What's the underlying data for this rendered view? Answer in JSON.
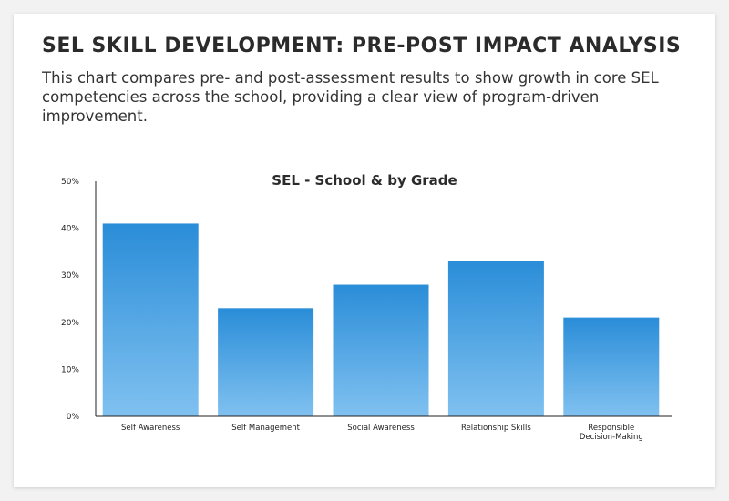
{
  "header": {
    "title": "SEL SKILL DEVELOPMENT: PRE-POST IMPACT ANALYSIS",
    "description": "This chart compares pre- and post-assessment results to show growth in core SEL competencies across the school, providing a clear view of program-driven improvement."
  },
  "chart_data": {
    "type": "bar",
    "title": "SEL - School & by Grade",
    "categories": [
      "Self Awareness",
      "Self Management",
      "Social Awareness",
      "Relationship Skills",
      "Responsible Decision-Making"
    ],
    "category_lines": [
      [
        "Self Awareness"
      ],
      [
        "Self Management"
      ],
      [
        "Social Awareness"
      ],
      [
        "Relationship Skills"
      ],
      [
        "Responsible",
        "Decision-Making"
      ]
    ],
    "values": [
      41,
      23,
      28,
      33,
      21
    ],
    "ylim": [
      0,
      50
    ],
    "yticks": [
      "0%",
      "10%",
      "20%",
      "30%",
      "40%",
      "50%"
    ],
    "grid": false,
    "colors": {
      "bar_top": "#2a8dd8",
      "bar_bottom": "#80c1f0"
    }
  }
}
